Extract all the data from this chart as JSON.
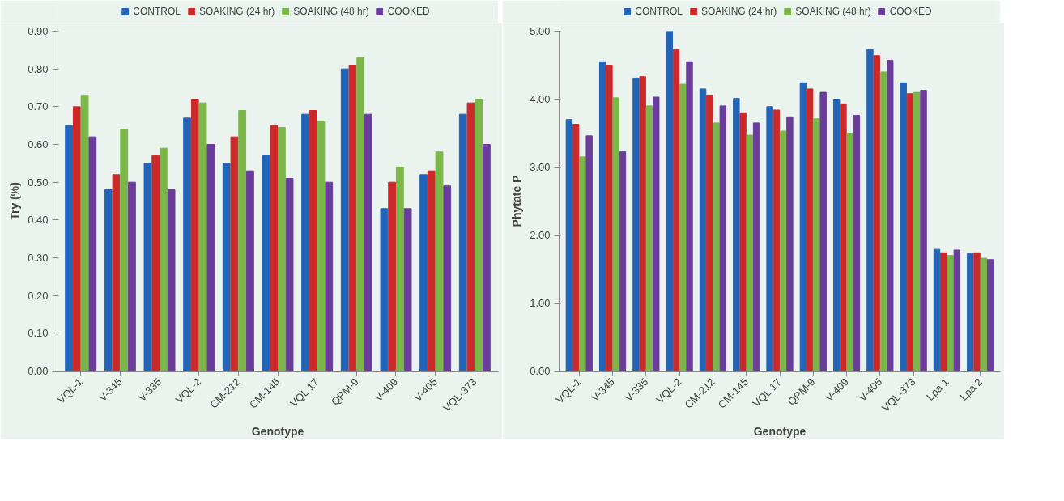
{
  "chart_data": [
    {
      "type": "bar",
      "xlabel": "Genotype",
      "ylabel": "Try (%)",
      "legend": "top",
      "grid": false,
      "categories": [
        "VQL-1",
        "V-345",
        "V-335",
        "VQL-2",
        "CM-212",
        "CM-145",
        "VQL 17",
        "QPM-9",
        "V-409",
        "V-405",
        "VQL-373"
      ],
      "ylim": [
        0,
        0.9
      ],
      "yticks": [
        {
          "value": 0,
          "label": "0.00"
        },
        {
          "value": 0.1,
          "label": "0.10"
        },
        {
          "value": 0.2,
          "label": "0.20"
        },
        {
          "value": 0.3,
          "label": "0.30"
        },
        {
          "value": 0.4,
          "label": "0.40"
        },
        {
          "value": 0.5,
          "label": "0.50"
        },
        {
          "value": 0.6,
          "label": "0.60"
        },
        {
          "value": 0.7,
          "label": "0.70"
        },
        {
          "value": 0.8,
          "label": "0.80"
        },
        {
          "value": 0.9,
          "label": "0.90"
        }
      ],
      "series": [
        {
          "name": "CONTROL",
          "color": "#2264b8",
          "values": [
            0.65,
            0.48,
            0.55,
            0.67,
            0.55,
            0.57,
            0.68,
            0.8,
            0.43,
            0.52,
            0.68
          ]
        },
        {
          "name": "SOAKING (24 hr)",
          "color": "#cc2a2a",
          "values": [
            0.7,
            0.52,
            0.57,
            0.72,
            0.62,
            0.65,
            0.69,
            0.81,
            0.5,
            0.53,
            0.71
          ]
        },
        {
          "name": "SOAKING (48 hr)",
          "color": "#7ab648",
          "values": [
            0.73,
            0.64,
            0.59,
            0.71,
            0.69,
            0.645,
            0.66,
            0.83,
            0.54,
            0.58,
            0.72
          ]
        },
        {
          "name": "COOKED",
          "color": "#6a3d9a",
          "values": [
            0.62,
            0.5,
            0.48,
            0.6,
            0.53,
            0.51,
            0.5,
            0.68,
            0.43,
            0.49,
            0.6
          ]
        }
      ]
    },
    {
      "type": "bar",
      "xlabel": "Genotype",
      "ylabel": "Phytate P",
      "legend": "top",
      "grid": false,
      "categories": [
        "VQL-1",
        "V-345",
        "V-335",
        "VQL-2",
        "CM-212",
        "CM-145",
        "VQL 17",
        "QPM-9",
        "V-409",
        "V-405",
        "VQL-373",
        "Lpa 1",
        "Lpa 2"
      ],
      "ylim": [
        0,
        5
      ],
      "yticks": [
        {
          "value": 0,
          "label": "0.00"
        },
        {
          "value": 1,
          "label": "1.00"
        },
        {
          "value": 2,
          "label": "2.00"
        },
        {
          "value": 3,
          "label": "3.00"
        },
        {
          "value": 4,
          "label": "4.00"
        },
        {
          "value": 5,
          "label": "5.00"
        }
      ],
      "series": [
        {
          "name": "CONTROL",
          "color": "#2264b8",
          "values": [
            3.7,
            4.55,
            4.31,
            5.0,
            4.15,
            4.01,
            3.89,
            4.24,
            4.0,
            4.73,
            4.24,
            1.79,
            1.73
          ]
        },
        {
          "name": "SOAKING (24 hr)",
          "color": "#cc2a2a",
          "values": [
            3.63,
            4.5,
            4.33,
            4.73,
            4.06,
            3.8,
            3.84,
            4.15,
            3.93,
            4.64,
            4.08,
            1.74,
            1.74
          ]
        },
        {
          "name": "SOAKING (48 hr)",
          "color": "#7ab648",
          "values": [
            3.15,
            4.02,
            3.9,
            4.22,
            3.65,
            3.47,
            3.53,
            3.71,
            3.5,
            4.4,
            4.1,
            1.7,
            1.66
          ]
        },
        {
          "name": "COOKED",
          "color": "#6a3d9a",
          "values": [
            3.46,
            3.23,
            4.03,
            4.55,
            3.9,
            3.65,
            3.74,
            4.1,
            3.76,
            4.57,
            4.13,
            1.78,
            1.64
          ]
        }
      ]
    }
  ]
}
